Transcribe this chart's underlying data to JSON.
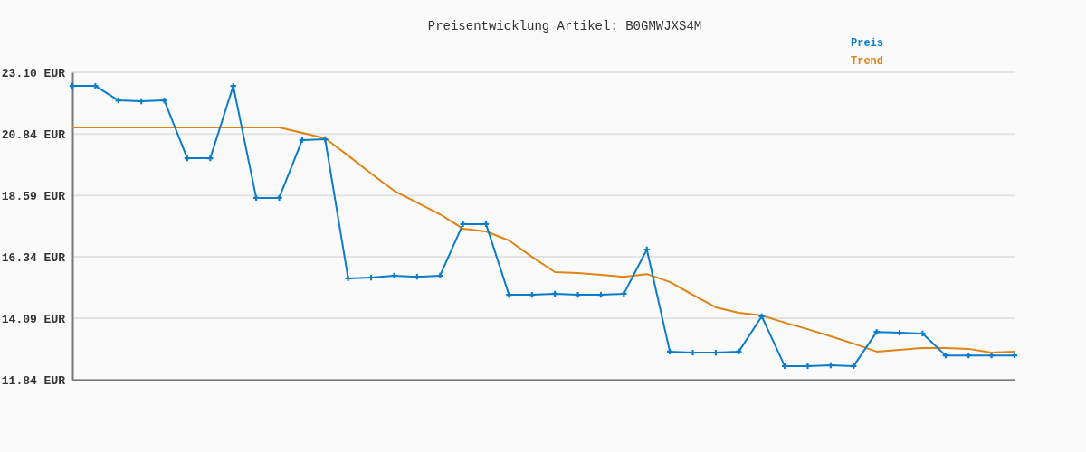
{
  "chart_data": {
    "type": "line",
    "title": "Preisentwicklung Artikel: B0GMWJXS4M",
    "categories": [
      null,
      null,
      null,
      null,
      null,
      null,
      null,
      null,
      null,
      null,
      null,
      null,
      null,
      null,
      null,
      null,
      null,
      null,
      null,
      null,
      null,
      null,
      null,
      null,
      null,
      null,
      null,
      null,
      null,
      null,
      null,
      null,
      null,
      null,
      null,
      null,
      null,
      null,
      null,
      null,
      null,
      null
    ],
    "series": [
      {
        "name": "Preis",
        "color": "#0b7dc8",
        "marker": "cross",
        "values": [
          22.6,
          22.6,
          22.07,
          22.04,
          22.07,
          19.95,
          19.95,
          22.6,
          18.5,
          18.5,
          20.62,
          20.65,
          15.55,
          15.58,
          15.65,
          15.61,
          15.65,
          17.54,
          17.54,
          14.95,
          14.95,
          14.99,
          14.95,
          14.95,
          14.99,
          16.61,
          12.87,
          12.83,
          12.83,
          12.87,
          14.16,
          12.34,
          12.34,
          12.37,
          12.34,
          13.59,
          13.56,
          13.53,
          12.73,
          12.73,
          12.73,
          12.73
        ]
      },
      {
        "name": "Trend",
        "color": "#e08214",
        "marker": "none",
        "values": [
          21.08,
          21.08,
          21.08,
          21.08,
          21.08,
          21.08,
          21.08,
          21.08,
          21.08,
          21.08,
          20.88,
          20.68,
          20.05,
          19.39,
          18.76,
          18.33,
          17.9,
          17.37,
          17.27,
          16.94,
          16.34,
          15.78,
          15.75,
          15.68,
          15.61,
          15.71,
          15.42,
          14.95,
          14.49,
          14.29,
          14.19,
          13.93,
          13.69,
          13.43,
          13.16,
          12.87,
          12.93,
          13.0,
          13.0,
          12.97,
          12.83,
          12.87
        ]
      }
    ],
    "ylim": [
      11.84,
      23.1
    ],
    "yticks": [
      {
        "value": 11.84,
        "label": "11.84 EUR"
      },
      {
        "value": 14.09,
        "label": "14.09 EUR"
      },
      {
        "value": 16.34,
        "label": "16.34 EUR"
      },
      {
        "value": 18.59,
        "label": "18.59 EUR"
      },
      {
        "value": 20.84,
        "label": "20.84 EUR"
      },
      {
        "value": 23.1,
        "label": "23.10 EUR"
      }
    ],
    "grid": "y",
    "legend": "top right",
    "line_style": "solid"
  }
}
